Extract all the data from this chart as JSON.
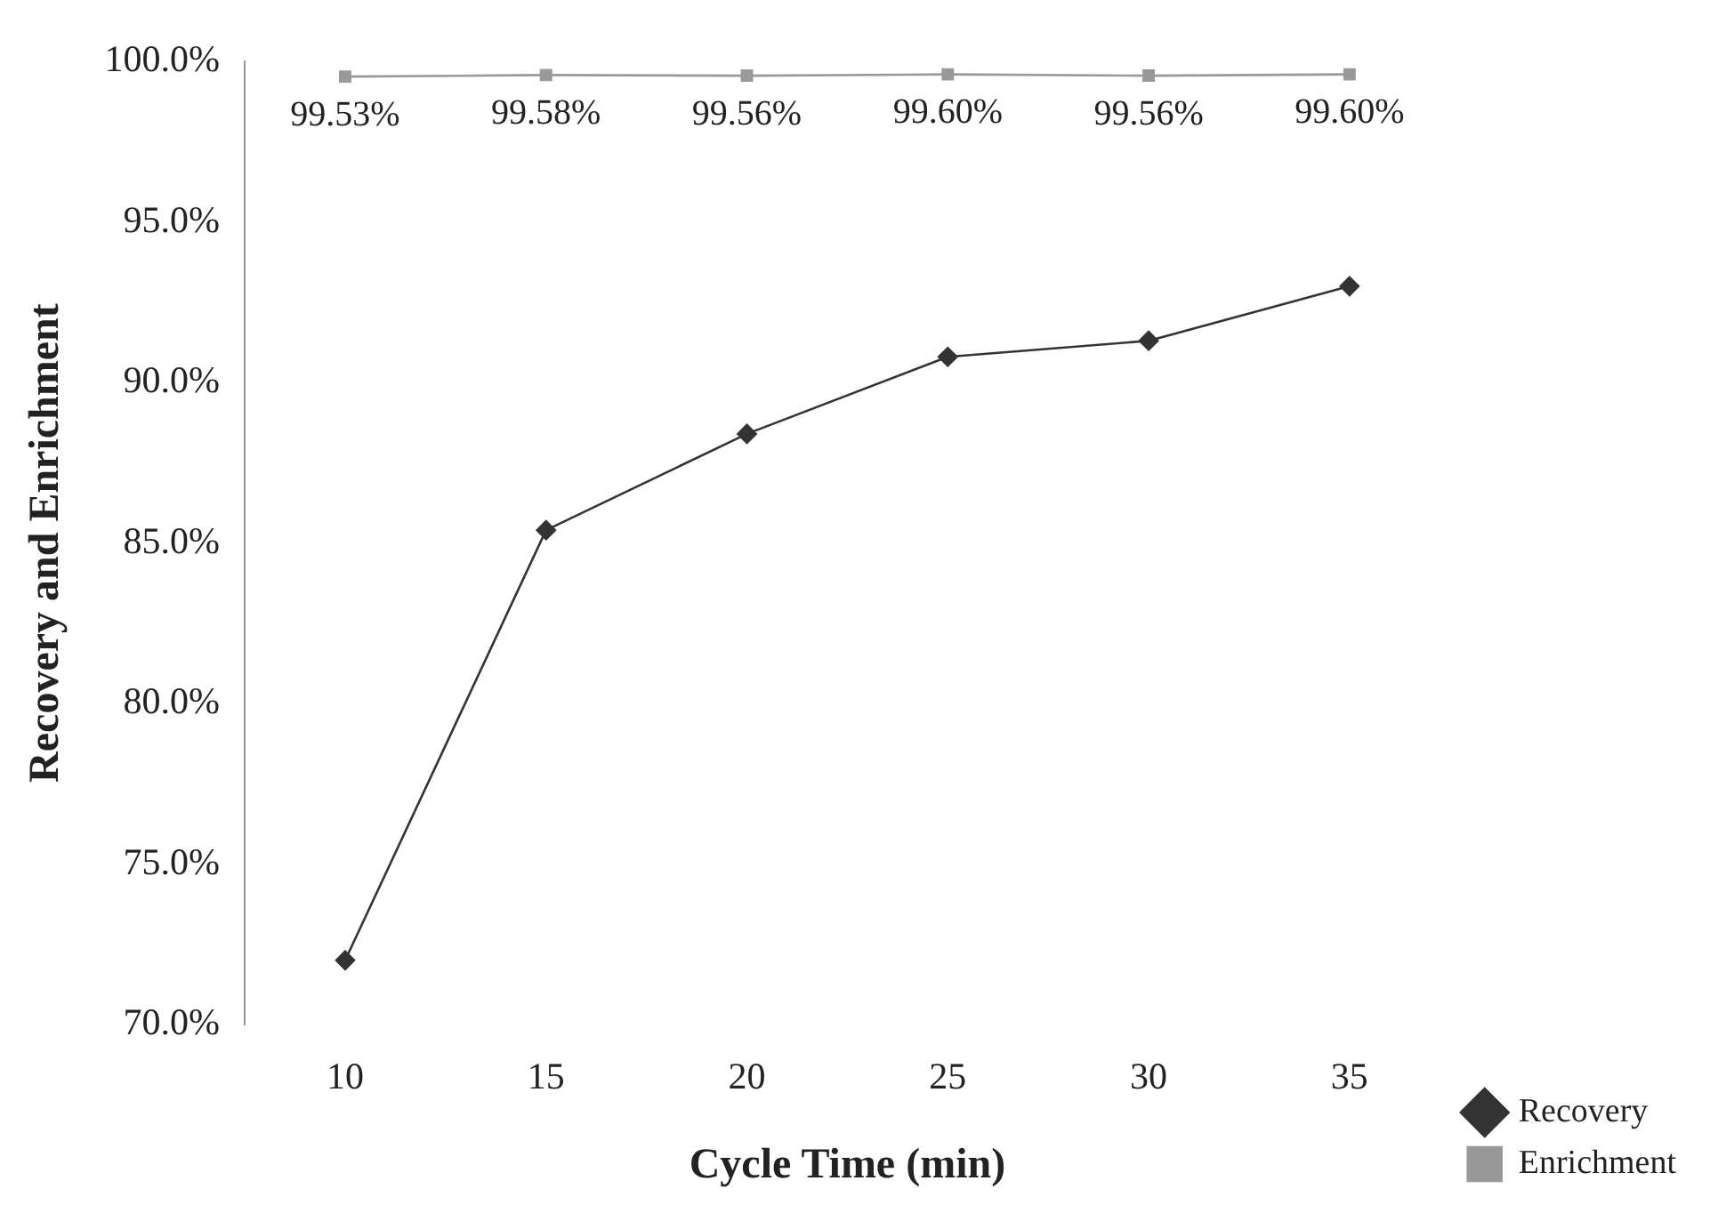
{
  "chart_data": {
    "type": "line",
    "xlabel": "Cycle Time (min)",
    "ylabel": "Recovery and Enrichment",
    "categories": [
      "10",
      "15",
      "20",
      "25",
      "30",
      "35"
    ],
    "series": [
      {
        "name": "Recovery",
        "color": "#333333",
        "marker": "diamond",
        "values": [
          72.0,
          85.4,
          88.4,
          90.8,
          91.3,
          93.0
        ]
      },
      {
        "name": "Enrichment",
        "color": "#999999",
        "marker": "square",
        "values": [
          99.53,
          99.58,
          99.56,
          99.6,
          99.56,
          99.6
        ],
        "value_labels": [
          "99.53%",
          "99.58%",
          "99.56%",
          "99.60%",
          "99.56%",
          "99.60%"
        ]
      }
    ],
    "ylim": [
      70,
      100
    ],
    "yticks": [
      {
        "value": 70,
        "label": "70.0%"
      },
      {
        "value": 75,
        "label": "75.0%"
      },
      {
        "value": 80,
        "label": "80.0%"
      },
      {
        "value": 85,
        "label": "85.0%"
      },
      {
        "value": 90,
        "label": "90.0%"
      },
      {
        "value": 95,
        "label": "95.0%"
      },
      {
        "value": 100,
        "label": "100.0%"
      }
    ],
    "grid": false,
    "legend": "right"
  }
}
